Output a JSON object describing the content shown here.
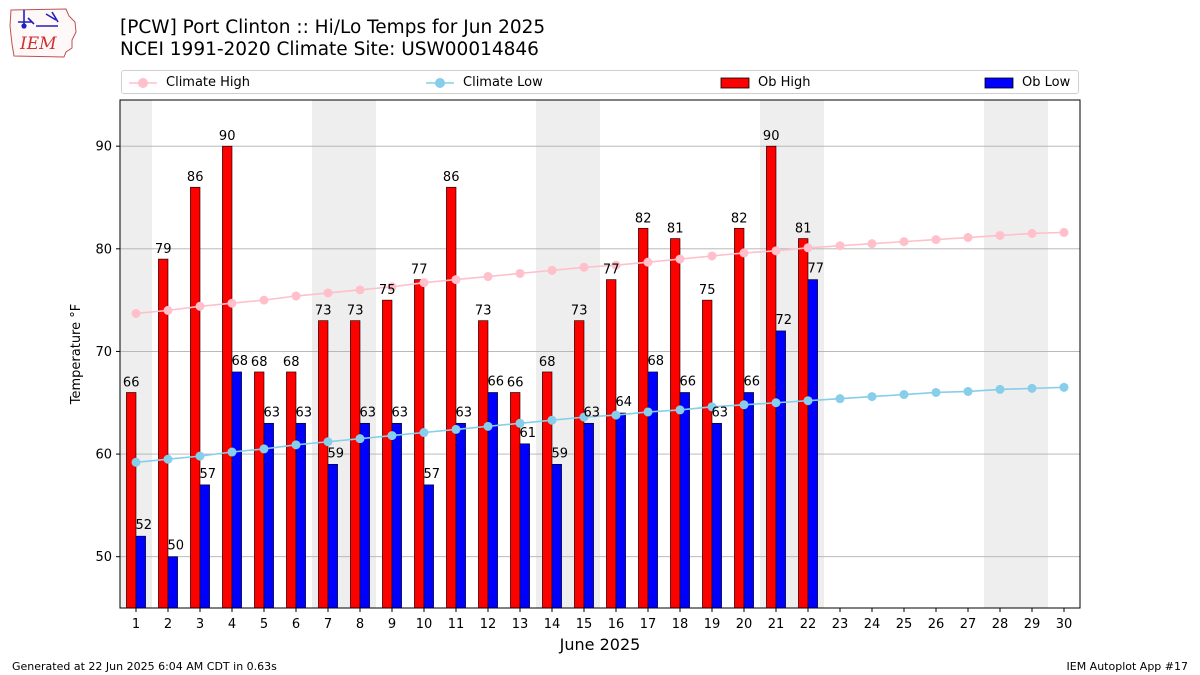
{
  "header": {
    "title_line1": "[PCW] Port Clinton :: Hi/Lo Temps for Jun 2025",
    "title_line2": "NCEI 1991-2020 Climate Site: USW00014846",
    "logo_text": "IEM"
  },
  "footer": {
    "left": "Generated at 22 Jun 2025 6:04 AM CDT in 0.63s",
    "right": "IEM Autoplot App #17"
  },
  "colors": {
    "ob_high": "#ff0000",
    "ob_low": "#0000ff",
    "climate_high": "#ffc0cb",
    "climate_low": "#87ceeb",
    "weekend_shade": "#eeeeee",
    "grid": "#b0b0b0"
  },
  "chart_data": {
    "type": "bar",
    "xlabel": "June 2025",
    "ylabel": "Temperature °F",
    "xlim": [
      0.5,
      30.5
    ],
    "ylim": [
      45,
      94.5
    ],
    "yticks": [
      50,
      60,
      70,
      80,
      90
    ],
    "grid": "horizontal",
    "legend_placement": "top",
    "days": [
      1,
      2,
      3,
      4,
      5,
      6,
      7,
      8,
      9,
      10,
      11,
      12,
      13,
      14,
      15,
      16,
      17,
      18,
      19,
      20,
      21,
      22,
      23,
      24,
      25,
      26,
      27,
      28,
      29,
      30
    ],
    "weekend_spans": [
      [
        0.5,
        1.5
      ],
      [
        6.5,
        8.5
      ],
      [
        13.5,
        15.5
      ],
      [
        20.5,
        22.5
      ],
      [
        27.5,
        29.5
      ]
    ],
    "series": [
      {
        "name": "Climate High",
        "kind": "line",
        "values": [
          73.7,
          74.0,
          74.4,
          74.7,
          75.0,
          75.4,
          75.7,
          76.0,
          76.3,
          76.7,
          77.0,
          77.3,
          77.6,
          77.9,
          78.2,
          78.4,
          78.7,
          79.0,
          79.3,
          79.6,
          79.8,
          80.1,
          80.3,
          80.5,
          80.7,
          80.9,
          81.1,
          81.3,
          81.5,
          81.6
        ]
      },
      {
        "name": "Climate Low",
        "kind": "line",
        "values": [
          59.2,
          59.5,
          59.8,
          60.2,
          60.5,
          60.9,
          61.2,
          61.5,
          61.8,
          62.1,
          62.4,
          62.7,
          63.0,
          63.3,
          63.6,
          63.8,
          64.1,
          64.3,
          64.6,
          64.8,
          65.0,
          65.2,
          65.4,
          65.6,
          65.8,
          66.0,
          66.1,
          66.3,
          66.4,
          66.5
        ]
      },
      {
        "name": "Ob High",
        "kind": "bar",
        "values": [
          66,
          79,
          86,
          90,
          68,
          68,
          73,
          73,
          75,
          77,
          86,
          73,
          66,
          68,
          73,
          77,
          82,
          81,
          75,
          82,
          90,
          81
        ]
      },
      {
        "name": "Ob Low",
        "kind": "bar",
        "values": [
          52,
          50,
          57,
          68,
          63,
          63,
          59,
          63,
          63,
          57,
          63,
          66,
          61,
          59,
          63,
          64,
          68,
          66,
          63,
          66,
          72,
          77
        ]
      }
    ]
  }
}
